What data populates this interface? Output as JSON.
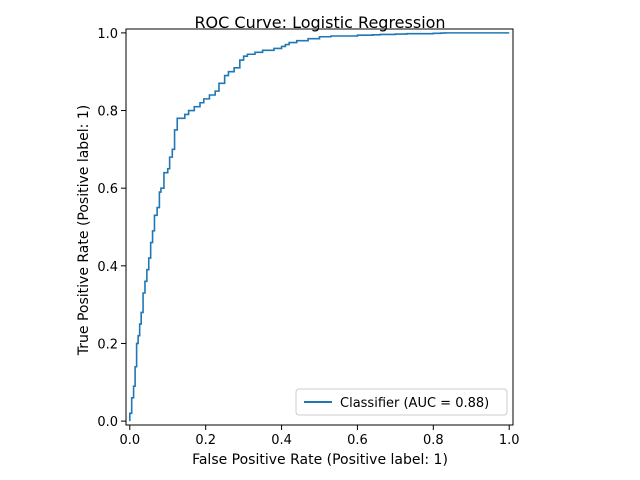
{
  "chart_data": {
    "type": "line",
    "title": "ROC Curve: Logistic Regression",
    "xlabel": "False Positive Rate (Positive label: 1)",
    "ylabel": "True Positive Rate (Positive label: 1)",
    "xlim": [
      -0.01,
      1.01
    ],
    "ylim": [
      -0.01,
      1.01
    ],
    "xticks": [
      "0.0",
      "0.2",
      "0.4",
      "0.6",
      "0.8",
      "1.0"
    ],
    "yticks": [
      "0.0",
      "0.2",
      "0.4",
      "0.6",
      "0.8",
      "1.0"
    ],
    "grid": false,
    "legend_placement": "lower-right",
    "series": [
      {
        "name": "Classifier (AUC = 0.88)",
        "color": "#1f77b4",
        "x": [
          0.0,
          0.0,
          0.005,
          0.005,
          0.01,
          0.01,
          0.014,
          0.014,
          0.018,
          0.018,
          0.022,
          0.022,
          0.026,
          0.026,
          0.03,
          0.03,
          0.035,
          0.035,
          0.04,
          0.04,
          0.045,
          0.045,
          0.05,
          0.05,
          0.055,
          0.055,
          0.06,
          0.06,
          0.065,
          0.065,
          0.072,
          0.072,
          0.078,
          0.078,
          0.082,
          0.082,
          0.09,
          0.09,
          0.1,
          0.1,
          0.105,
          0.105,
          0.112,
          0.112,
          0.118,
          0.118,
          0.125,
          0.125,
          0.145,
          0.145,
          0.155,
          0.155,
          0.17,
          0.17,
          0.185,
          0.185,
          0.195,
          0.195,
          0.21,
          0.21,
          0.225,
          0.225,
          0.235,
          0.235,
          0.25,
          0.25,
          0.26,
          0.26,
          0.275,
          0.275,
          0.29,
          0.29,
          0.3,
          0.3,
          0.31,
          0.31,
          0.33,
          0.33,
          0.35,
          0.35,
          0.38,
          0.38,
          0.4,
          0.4,
          0.41,
          0.41,
          0.42,
          0.42,
          0.44,
          0.44,
          0.47,
          0.47,
          0.5,
          0.5,
          0.53,
          0.53,
          0.6,
          0.6,
          0.64,
          0.64,
          0.66,
          0.66,
          0.7,
          0.7,
          0.73,
          0.73,
          0.8,
          0.8,
          0.82,
          0.82,
          0.83,
          0.83,
          1.0
        ],
        "y": [
          0.0,
          0.02,
          0.02,
          0.06,
          0.06,
          0.09,
          0.09,
          0.14,
          0.14,
          0.2,
          0.2,
          0.22,
          0.22,
          0.25,
          0.25,
          0.28,
          0.28,
          0.33,
          0.33,
          0.36,
          0.36,
          0.39,
          0.39,
          0.42,
          0.42,
          0.46,
          0.46,
          0.49,
          0.49,
          0.53,
          0.53,
          0.55,
          0.55,
          0.59,
          0.59,
          0.6,
          0.6,
          0.64,
          0.64,
          0.65,
          0.65,
          0.68,
          0.68,
          0.7,
          0.7,
          0.75,
          0.75,
          0.78,
          0.78,
          0.79,
          0.79,
          0.8,
          0.8,
          0.81,
          0.81,
          0.82,
          0.82,
          0.83,
          0.83,
          0.84,
          0.84,
          0.85,
          0.85,
          0.87,
          0.87,
          0.89,
          0.89,
          0.9,
          0.9,
          0.91,
          0.91,
          0.93,
          0.93,
          0.94,
          0.94,
          0.945,
          0.945,
          0.95,
          0.95,
          0.955,
          0.955,
          0.96,
          0.96,
          0.965,
          0.965,
          0.97,
          0.97,
          0.975,
          0.975,
          0.98,
          0.98,
          0.985,
          0.985,
          0.99,
          0.99,
          0.992,
          0.992,
          0.994,
          0.994,
          0.995,
          0.995,
          0.996,
          0.996,
          0.997,
          0.997,
          0.998,
          0.998,
          0.999,
          0.999,
          0.9995,
          0.9995,
          1.0,
          1.0
        ]
      }
    ]
  }
}
